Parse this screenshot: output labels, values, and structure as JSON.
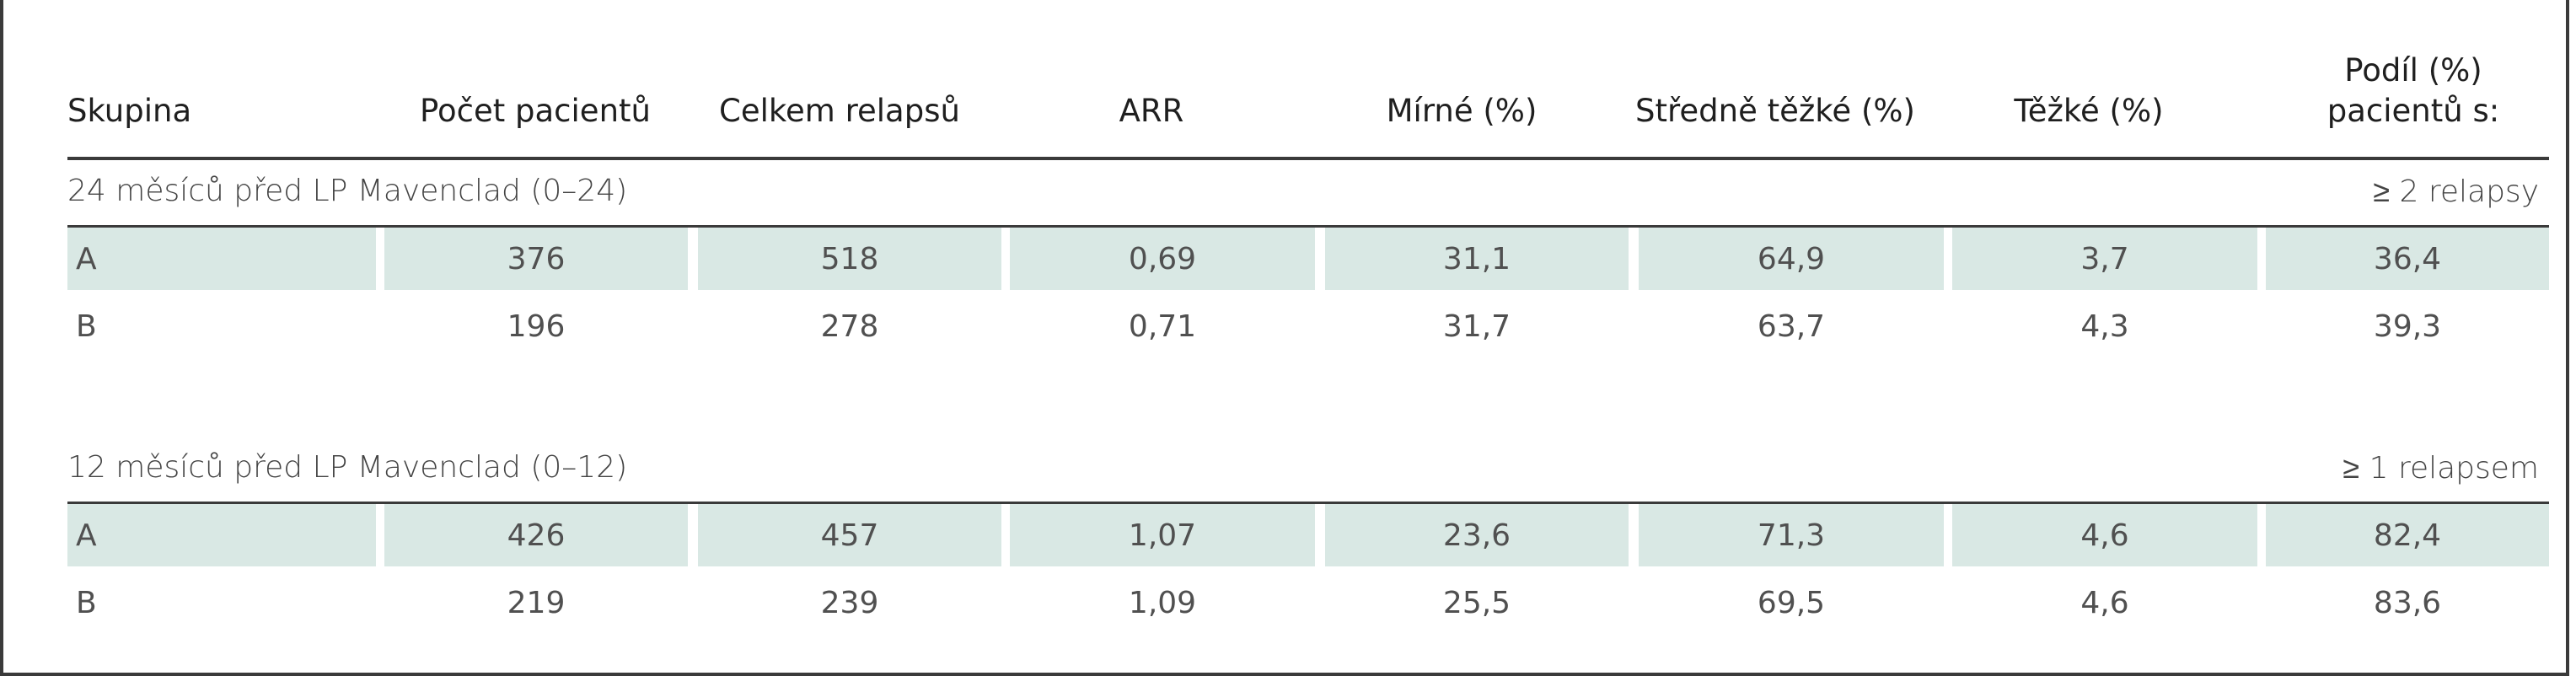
{
  "table": {
    "headers": [
      "Skupina",
      "Počet pacientů",
      "Celkem relapsů",
      "ARR",
      "Mírné (%)",
      "Středně těžké (%)",
      "Těžké (%)",
      "Podíl (%) pacientů s:"
    ],
    "sections": [
      {
        "title": "24 měsíců před LP Mavenclad (0–24)",
        "note": "≥ 2 relapsy",
        "rows": [
          [
            "A",
            "376",
            "518",
            "0,69",
            "31,1",
            "64,9",
            "3,7",
            "36,4"
          ],
          [
            "B",
            "196",
            "278",
            "0,71",
            "31,7",
            "63,7",
            "4,3",
            "39,3"
          ]
        ]
      },
      {
        "title": "12 měsíců před LP Mavenclad (0–12)",
        "note": "≥ 1 relapsem",
        "rows": [
          [
            "A",
            "426",
            "457",
            "1,07",
            "23,6",
            "71,3",
            "4,6",
            "82,4"
          ],
          [
            "B",
            "219",
            "239",
            "1,09",
            "25,5",
            "69,5",
            "4,6",
            "83,6"
          ]
        ]
      }
    ]
  },
  "colors": {
    "shaded_row": "#d9e8e4",
    "rule": "#3a3a3a",
    "text": "#505050"
  }
}
